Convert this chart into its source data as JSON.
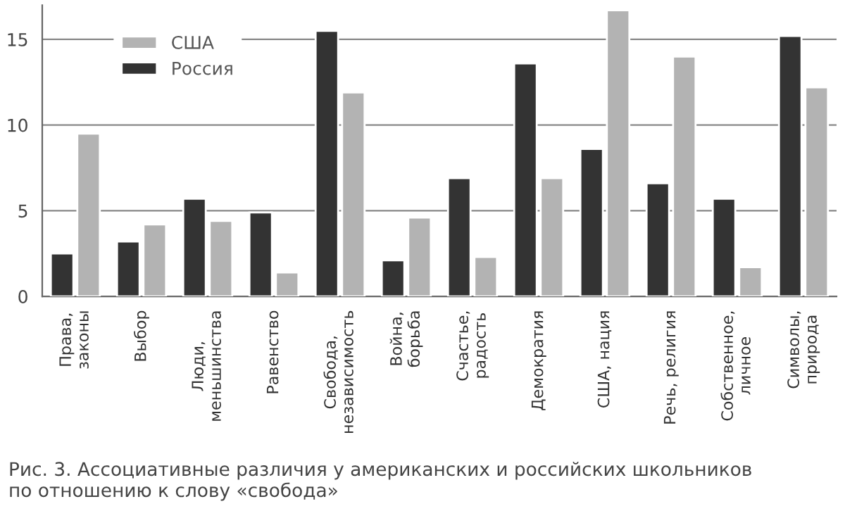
{
  "chart_data": {
    "type": "bar",
    "title": "Рис. 3. Ассоциативные различия у американских и российских школьников\nпо отношению к слову «свобода»",
    "categories": [
      "Права,\nзаконы",
      "Выбор",
      "Люди,\nменьшинства",
      "Равенство",
      "Свобода,\nнезависимость",
      "Война,\nборьба",
      "Счастье,\nрадость",
      "Демократия",
      "США, нация",
      "Речь, религия",
      "Собственное,\nличное",
      "Символы,\nприрода"
    ],
    "series": [
      {
        "name": "Россия",
        "color": "#333333",
        "values": [
          2.5,
          3.2,
          5.7,
          4.9,
          15.5,
          2.1,
          6.9,
          13.6,
          8.6,
          6.6,
          5.7,
          15.2
        ]
      },
      {
        "name": "США",
        "color": "#b3b3b3",
        "values": [
          9.5,
          4.2,
          4.4,
          1.4,
          11.9,
          4.6,
          2.3,
          6.9,
          16.7,
          14.0,
          1.7,
          12.2
        ]
      }
    ],
    "ylim": [
      0,
      17
    ],
    "yticks": [
      0,
      5,
      10,
      15
    ],
    "grid": "y",
    "legend": "top left"
  }
}
